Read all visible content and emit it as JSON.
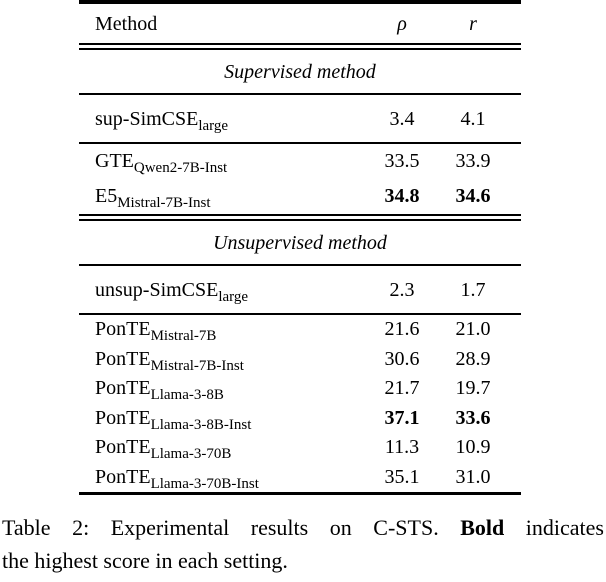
{
  "table": {
    "header": {
      "method": "Method",
      "rho": "ρ",
      "r": "r"
    },
    "sections": [
      {
        "title": "Supervised method",
        "block1": [
          {
            "main": "sup-SimCSE",
            "sub": "large",
            "rho": "3.4",
            "r": "4.1",
            "bold": false
          }
        ],
        "block2": [
          {
            "main": "GTE",
            "sub": "Qwen2-7B-Inst",
            "rho": "33.5",
            "r": "33.9",
            "bold": false
          },
          {
            "main": "E5",
            "sub": "Mistral-7B-Inst",
            "rho": "34.8",
            "r": "34.6",
            "bold": true
          }
        ]
      },
      {
        "title": "Unsupervised method",
        "block1": [
          {
            "main": "unsup-SimCSE",
            "sub": "large",
            "rho": "2.3",
            "r": "1.7",
            "bold": false
          }
        ],
        "block2": [
          {
            "main": "PonTE",
            "sub": "Mistral-7B",
            "rho": "21.6",
            "r": "21.0",
            "bold": false
          },
          {
            "main": "PonTE",
            "sub": "Mistral-7B-Inst",
            "rho": "30.6",
            "r": "28.9",
            "bold": false
          },
          {
            "main": "PonTE",
            "sub": "Llama-3-8B",
            "rho": "21.7",
            "r": "19.7",
            "bold": false
          },
          {
            "main": "PonTE",
            "sub": "Llama-3-8B-Inst",
            "rho": "37.1",
            "r": "33.6",
            "bold": true
          },
          {
            "main": "PonTE",
            "sub": "Llama-3-70B",
            "rho": "11.3",
            "r": "10.9",
            "bold": false
          },
          {
            "main": "PonTE",
            "sub": "Llama-3-70B-Inst",
            "rho": "35.1",
            "r": "31.0",
            "bold": false
          }
        ]
      }
    ]
  },
  "caption": {
    "line1_prefix": "Table 2: Experimental results on C-STS. ",
    "line1_bold": "Bold",
    "line1_suffix": " indicates",
    "line2": "the highest score in each setting."
  }
}
